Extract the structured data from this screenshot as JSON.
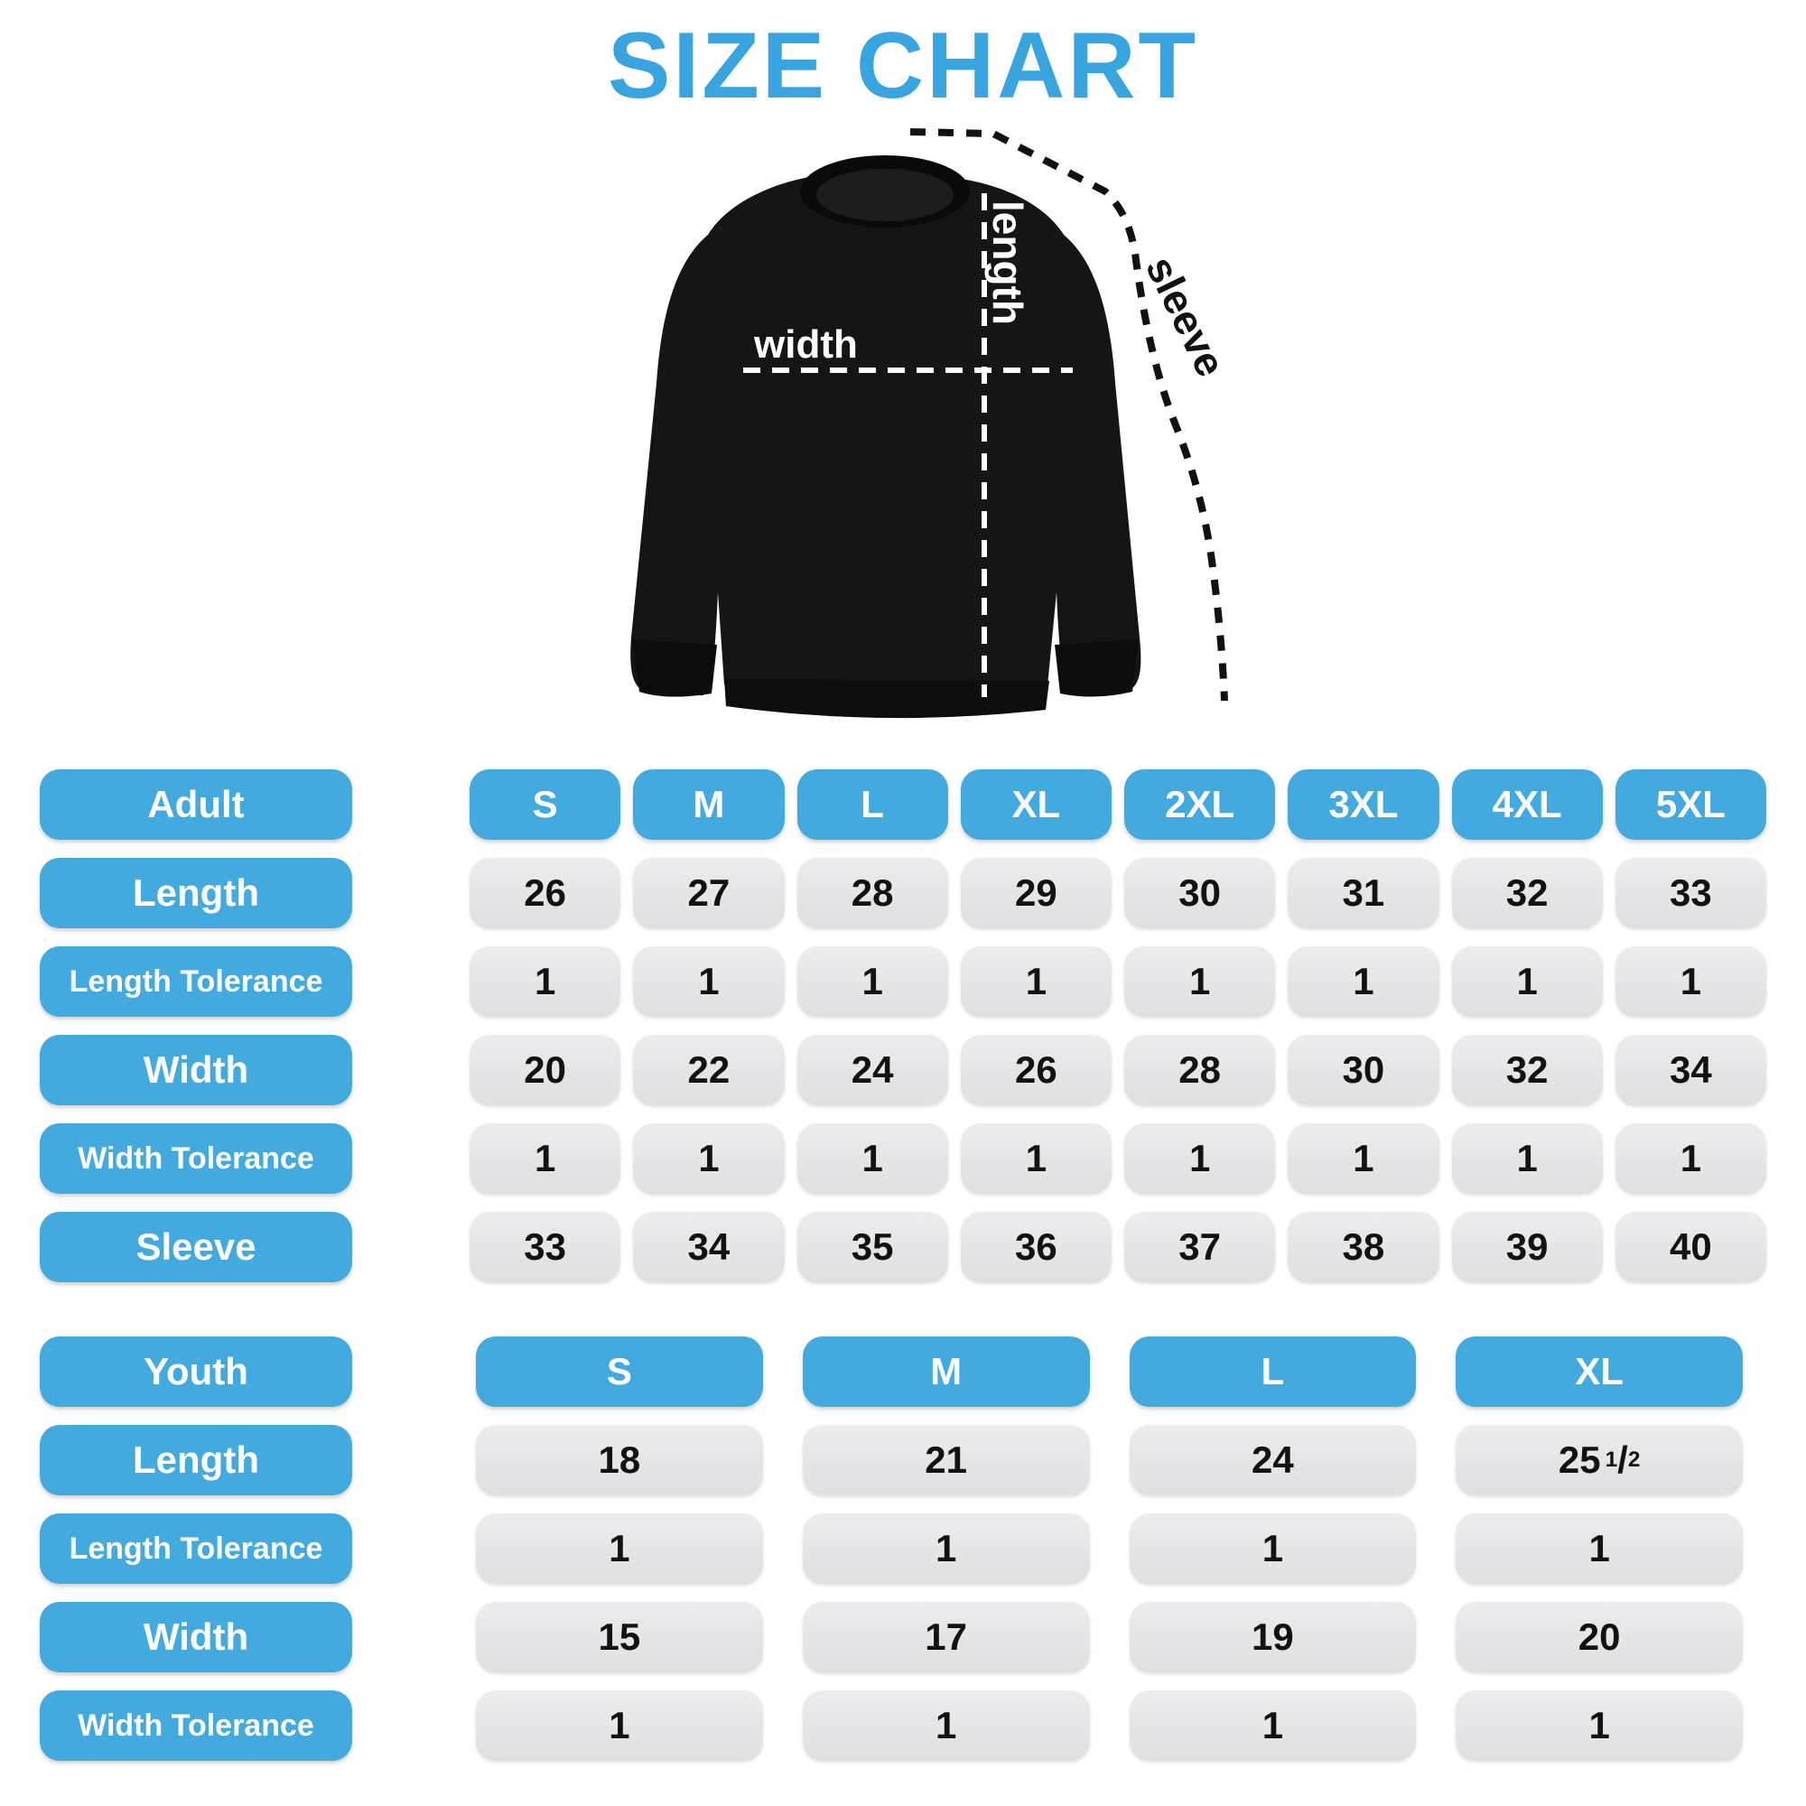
{
  "title": "SIZE CHART",
  "colors": {
    "title_blue": "#38A5E0",
    "accent_blue": "#43AADF",
    "pill_gray": "#E5E5E7",
    "text_dark": "#121212",
    "shirt_black": "#151515"
  },
  "diagram": {
    "labels": {
      "length": "length",
      "width": "width",
      "sleeve": "sleeve"
    }
  },
  "chart_data": [
    {
      "type": "table",
      "name": "adult",
      "header_label": "Adult",
      "columns": [
        "S",
        "M",
        "L",
        "XL",
        "2XL",
        "3XL",
        "4XL",
        "5XL"
      ],
      "rows": [
        {
          "label": "Length",
          "values": [
            "26",
            "27",
            "28",
            "29",
            "30",
            "31",
            "32",
            "33"
          ]
        },
        {
          "label": "Length Tolerance",
          "values": [
            "1",
            "1",
            "1",
            "1",
            "1",
            "1",
            "1",
            "1"
          ]
        },
        {
          "label": "Width",
          "values": [
            "20",
            "22",
            "24",
            "26",
            "28",
            "30",
            "32",
            "34"
          ]
        },
        {
          "label": "Width Tolerance",
          "values": [
            "1",
            "1",
            "1",
            "1",
            "1",
            "1",
            "1",
            "1"
          ]
        },
        {
          "label": "Sleeve",
          "values": [
            "33",
            "34",
            "35",
            "36",
            "37",
            "38",
            "39",
            "40"
          ]
        }
      ]
    },
    {
      "type": "table",
      "name": "youth",
      "header_label": "Youth",
      "columns": [
        "S",
        "M",
        "L",
        "XL"
      ],
      "rows": [
        {
          "label": "Length",
          "values": [
            "18",
            "21",
            "24",
            "25 1/2"
          ]
        },
        {
          "label": "Length Tolerance",
          "values": [
            "1",
            "1",
            "1",
            "1"
          ]
        },
        {
          "label": "Width",
          "values": [
            "15",
            "17",
            "19",
            "20"
          ]
        },
        {
          "label": "Width Tolerance",
          "values": [
            "1",
            "1",
            "1",
            "1"
          ]
        }
      ]
    }
  ]
}
